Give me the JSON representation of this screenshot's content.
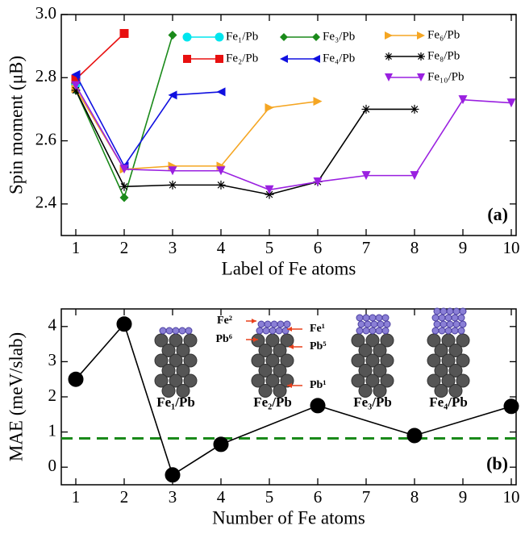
{
  "chart_data": [
    {
      "type": "line",
      "xlabel": "Label of Fe atoms",
      "ylabel": "Spin moment (μB)",
      "annotation": "(a)",
      "x": [
        1,
        2,
        3,
        4,
        5,
        6,
        7,
        8,
        9,
        10
      ],
      "xlim": [
        0.7,
        10.1
      ],
      "xticks": [
        1,
        2,
        3,
        4,
        5,
        6,
        7,
        8,
        9,
        10
      ],
      "ylim": [
        2.3,
        3.0
      ],
      "yticks": [
        2.4,
        2.6,
        2.8,
        {
          "value": 3,
          "label": "3.0"
        }
      ],
      "series": [
        {
          "name": "Fe₁/Pb",
          "color": "#00e5ee",
          "marker": "circle",
          "values": [
            2.78,
            null,
            null,
            null,
            null,
            null,
            null,
            null,
            null,
            null
          ]
        },
        {
          "name": "Fe₂/Pb",
          "color": "#e81010",
          "marker": "square",
          "values": [
            2.795,
            2.94,
            null,
            null,
            null,
            null,
            null,
            null,
            null,
            null
          ]
        },
        {
          "name": "Fe₃/Pb",
          "color": "#1a8a1a",
          "marker": "diamond",
          "values": [
            2.76,
            2.42,
            2.935,
            null,
            null,
            null,
            null,
            null,
            null,
            null
          ]
        },
        {
          "name": "Fe₄/Pb",
          "color": "#1010e0",
          "marker": "triangle-left",
          "values": [
            2.81,
            2.52,
            2.745,
            2.755,
            null,
            null,
            null,
            null,
            null,
            null
          ]
        },
        {
          "name": "Fe₆/Pb",
          "color": "#f5a623",
          "marker": "triangle-right",
          "values": [
            2.765,
            2.51,
            2.52,
            2.52,
            2.705,
            2.725,
            null,
            null,
            null,
            null
          ]
        },
        {
          "name": "Fe₈/Pb",
          "color": "#000000",
          "marker": "star",
          "values": [
            2.76,
            2.455,
            2.46,
            2.46,
            2.43,
            2.47,
            2.7,
            2.7,
            null,
            null
          ]
        },
        {
          "name": "Fe₁₀/Pb",
          "color": "#9a20e0",
          "marker": "triangle-down",
          "values": [
            2.775,
            2.51,
            2.505,
            2.505,
            2.445,
            2.47,
            2.49,
            2.49,
            2.73,
            2.72
          ]
        }
      ]
    },
    {
      "type": "line",
      "xlabel": "Number of Fe atoms",
      "ylabel": "MAE (meV/slab)",
      "annotation": "(b)",
      "x": [
        1,
        2,
        3,
        4,
        6,
        8,
        10
      ],
      "xlim": [
        0.7,
        10.1
      ],
      "xticks": [
        1,
        2,
        3,
        4,
        5,
        6,
        7,
        8,
        9,
        10
      ],
      "ylim": [
        -0.5,
        4.5
      ],
      "yticks": [
        0,
        1,
        2,
        3,
        4
      ],
      "series": [
        {
          "color": "#000000",
          "marker": "circle",
          "values": [
            2.5,
            4.07,
            -0.22,
            0.65,
            1.75,
            0.9,
            1.73
          ]
        }
      ],
      "reference_line": {
        "value": 0.82,
        "color": "#1a8a1a"
      },
      "insets": [
        {
          "label": "Fe₁/Pb"
        },
        {
          "label": "Fe₂/Pb",
          "arrows": [
            "Fe²",
            "Fe¹",
            "Pb⁶",
            "Pb⁵",
            "Pb¹"
          ]
        },
        {
          "label": "Fe₃/Pb"
        },
        {
          "label": "Fe₄/Pb"
        }
      ]
    }
  ]
}
